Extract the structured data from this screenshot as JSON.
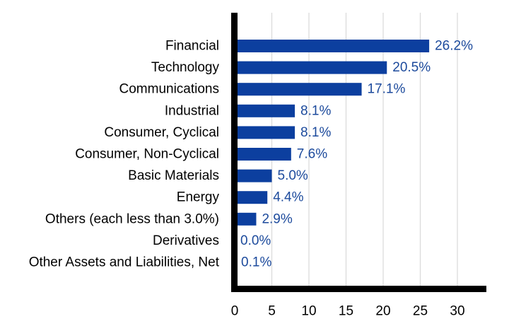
{
  "chart_data": {
    "type": "bar",
    "orientation": "horizontal",
    "title": "",
    "xlabel": "",
    "ylabel": "",
    "categories": [
      "Financial",
      "Technology",
      "Communications",
      "Industrial",
      "Consumer, Cyclical",
      "Consumer, Non-Cyclical",
      "Basic Materials",
      "Energy",
      "Others (each less than 3.0%)",
      "Derivatives",
      "Other Assets and Liabilities, Net"
    ],
    "values": [
      26.2,
      20.5,
      17.1,
      8.1,
      8.1,
      7.6,
      5.0,
      4.4,
      2.9,
      0.0,
      0.1
    ],
    "value_labels": [
      "26.2%",
      "20.5%",
      "17.1%",
      "8.1%",
      "8.1%",
      "7.6%",
      "5.0%",
      "4.4%",
      "2.9%",
      "0.0%",
      "0.1%"
    ],
    "xlim": [
      0,
      34.5
    ],
    "xticks": [
      0,
      5,
      10,
      15,
      20,
      25,
      30
    ],
    "xtick_labels": [
      "0",
      "5",
      "10",
      "15",
      "20",
      "25",
      "30"
    ],
    "grid": "vertical",
    "legend": "none",
    "colors": {
      "bar": "#0c3f9f",
      "data_label": "#1c4a9c",
      "axis": "#000000",
      "grid": "#d9d9d9",
      "text": "#000000"
    }
  }
}
